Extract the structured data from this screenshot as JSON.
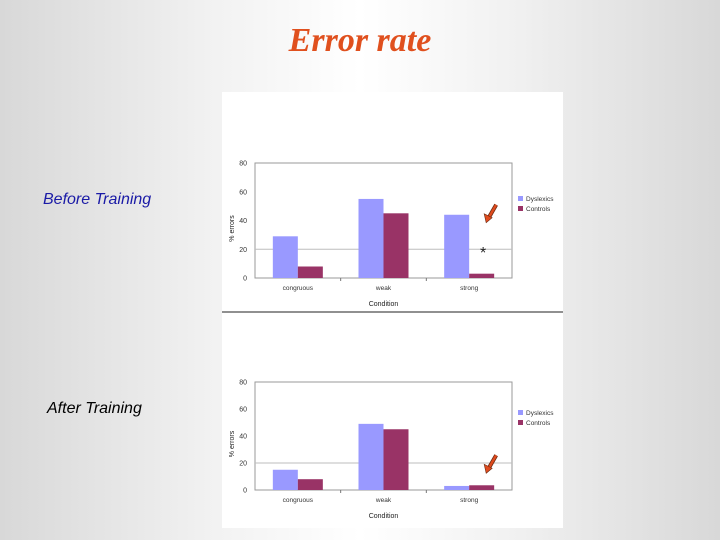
{
  "slide": {
    "title": "Error rate",
    "before_label": "Before Training",
    "after_label": "After Training"
  },
  "chart_data": [
    {
      "type": "bar",
      "title": "",
      "xlabel": "Condition",
      "ylabel": "% errors",
      "ylim": [
        0,
        80
      ],
      "yticks": [
        "0",
        "20",
        "40",
        "60",
        "80"
      ],
      "categories": [
        "congruous",
        "weak",
        "strong"
      ],
      "series": [
        {
          "name": "Dyslexics",
          "values": [
            29,
            55,
            44
          ],
          "color": "#9999ff"
        },
        {
          "name": "Controls",
          "values": [
            8,
            45,
            3
          ],
          "color": "#993366"
        }
      ],
      "legend": "right",
      "annotations": [
        {
          "text": "*",
          "category": "strong"
        }
      ],
      "highlight_arrow": {
        "category": "strong",
        "color": "#e04b1e"
      }
    },
    {
      "type": "bar",
      "title": "",
      "xlabel": "Condition",
      "ylabel": "% errors",
      "ylim": [
        0,
        80
      ],
      "yticks": [
        "0",
        "20",
        "40",
        "60",
        "80"
      ],
      "categories": [
        "congruous",
        "weak",
        "strong"
      ],
      "series": [
        {
          "name": "Dyslexics",
          "values": [
            15,
            49,
            3
          ],
          "color": "#9999ff"
        },
        {
          "name": "Controls",
          "values": [
            8,
            45,
            3.5
          ],
          "color": "#993366"
        }
      ],
      "legend": "right",
      "annotations": [],
      "highlight_arrow": {
        "category": "strong",
        "color": "#e04b1e"
      }
    }
  ]
}
